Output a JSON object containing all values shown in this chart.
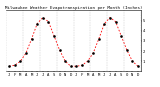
{
  "title": "Milwaukee Weather Evapotranspiration per Month (Inches)",
  "values": [
    0.5,
    0.6,
    1.0,
    1.8,
    3.2,
    4.7,
    5.3,
    4.9,
    3.5,
    2.1,
    1.0,
    0.5,
    0.5,
    0.6,
    1.0,
    1.8,
    3.2,
    4.7,
    5.3,
    4.9,
    3.5,
    2.1,
    1.0,
    0.5
  ],
  "line_color": "#ff0000",
  "dot_color": "#000000",
  "grid_color": "#888888",
  "bg_color": "#ffffff",
  "ylim": [
    0,
    6
  ],
  "yticks": [
    1,
    2,
    3,
    4,
    5
  ],
  "title_fontsize": 3.0,
  "tick_fontsize": 2.8,
  "line_width": 0.6,
  "dot_size": 0.8
}
